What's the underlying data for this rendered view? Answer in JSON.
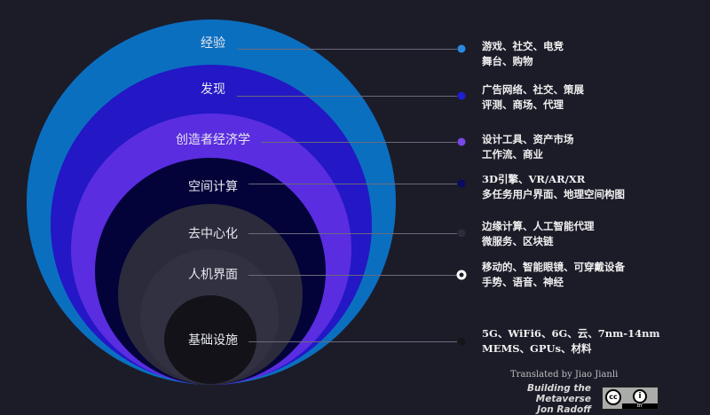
{
  "layers": [
    {
      "label": "经验",
      "color": "#0b6fc0",
      "dot": "#2a8ae0",
      "lines": [
        "游戏、社交、电竞",
        "舞台、购物"
      ]
    },
    {
      "label": "发现",
      "color": "#2317c6",
      "dot": "#1f1fd0",
      "lines": [
        "广告网络、社交、策展",
        "评测、商场、代理"
      ]
    },
    {
      "label": "创造者经济学",
      "color": "#5a2de0",
      "dot": "#7a48e8",
      "lines": [
        "设计工具、资产市场",
        "工作流、商业"
      ]
    },
    {
      "label": "空间计算",
      "color": "#03033a",
      "dot": "#0a0a60",
      "lines": [
        "3D引擎、VR/AR/XR",
        "多任务用户界面、地理空间构图"
      ]
    },
    {
      "label": "去中心化",
      "color": "#2b2b3b",
      "dot": "#2c2c3a",
      "lines": [
        "边缘计算、人工智能代理",
        "微服务、区块链"
      ]
    },
    {
      "label": "人机界面",
      "color": "#313141",
      "dot": "#ffffff",
      "lines": [
        "移动的、智能眼镜、可穿戴设备",
        "手势、语音、神经"
      ]
    },
    {
      "label": "基础设施",
      "color": "#121218",
      "dot": "#151518",
      "lines": [
        "5G、WiFi6、6G、云、7nm-14nm",
        "MEMS、GPUs、材料"
      ]
    }
  ],
  "footer": {
    "translated": "Translated by Jiao Jianli",
    "book": "Building the Metaverse",
    "author": "Jon Radoff",
    "license": "BY",
    "license_cc": "cc"
  }
}
